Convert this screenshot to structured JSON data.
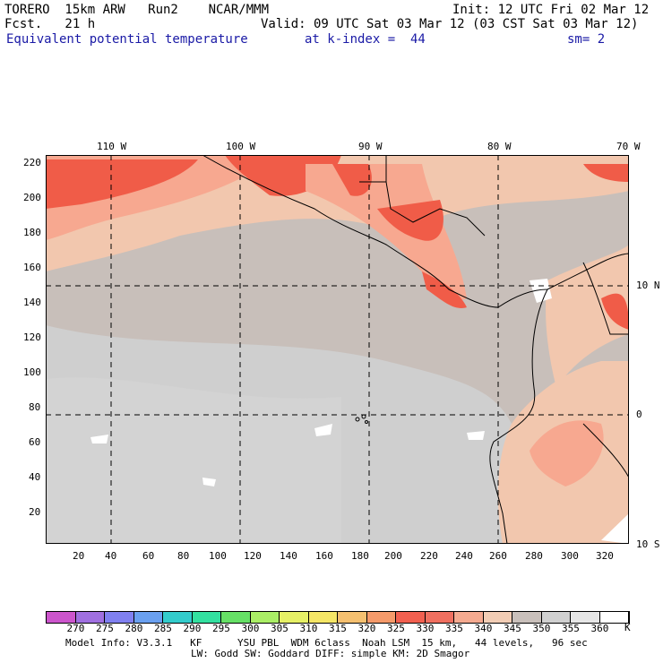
{
  "header": {
    "line1_left": "TORERO  15km ARW   Run2    NCAR/MMM",
    "line1_right": "Init: 12 UTC Fri 02 Mar 12",
    "line2_left": "Fcst.   21 h",
    "line2_right": "Valid: 09 UTC Sat 03 Mar 12 (03 CST Sat 03 Mar 12)",
    "field": "Equivalent potential temperature",
    "kindex": "at k-index =  44",
    "sm": "sm= 2"
  },
  "map": {
    "lon_labels": [
      "110 W",
      "100 W",
      "90 W",
      "80 W",
      "70 W"
    ],
    "lat_labels": [
      "10 N",
      "0",
      "10 S"
    ],
    "y_ticks": [
      "220",
      "200",
      "180",
      "160",
      "140",
      "120",
      "100",
      "80",
      "60",
      "40",
      "20"
    ],
    "x_ticks": [
      "20",
      "40",
      "60",
      "80",
      "100",
      "120",
      "140",
      "160",
      "180",
      "200",
      "220",
      "240",
      "260",
      "280",
      "300",
      "320"
    ],
    "colors": {
      "background": "#c8bfba",
      "cool": "#cfcfcf",
      "warm340": "#f2c7ae",
      "warm335": "#f7a890",
      "warm330": "#f05c48",
      "white": "#ffffff"
    }
  },
  "colorbar": {
    "values": [
      "270",
      "275",
      "280",
      "285",
      "290",
      "295",
      "300",
      "305",
      "310",
      "315",
      "320",
      "325",
      "330",
      "335",
      "340",
      "345",
      "350",
      "355",
      "360"
    ],
    "unit": "K",
    "colors": [
      "#cc55cc",
      "#a070e0",
      "#8080f0",
      "#6aa0f0",
      "#33cccc",
      "#33e0a0",
      "#66e066",
      "#aaee66",
      "#e6f066",
      "#f5e666",
      "#f5c070",
      "#f59a6a",
      "#f26050",
      "#f07060",
      "#f5aa90",
      "#f2cdb5",
      "#c9c0bb",
      "#d0d0d0",
      "#e6e6e6",
      "#ffffff"
    ]
  },
  "footer": {
    "line1": "Model Info: V3.3.1   KF      YSU PBL  WDM 6class  Noah LSM  15 km,   44 levels,   96 sec",
    "line2": "LW: Godd SW: Goddard DIFF: simple KM: 2D Smagor"
  }
}
